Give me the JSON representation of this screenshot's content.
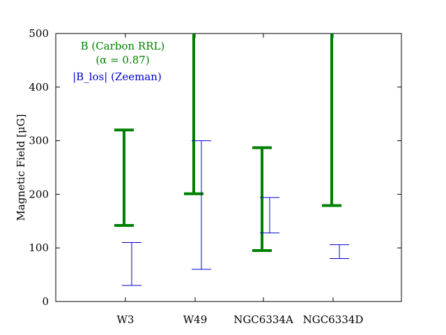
{
  "chart_data": {
    "type": "errorbar",
    "categories": [
      "W3",
      "W49",
      "NGC6334A",
      "NGC6334D"
    ],
    "ylabel": "Magnetic Field [μG]",
    "ylim": [
      0,
      500
    ],
    "yticks": [
      0,
      100,
      200,
      300,
      400,
      500
    ],
    "grid": false,
    "legend_placement": "top-left",
    "series": [
      {
        "name": "B (Carbon RRL)",
        "name_line2": "(α = 0.87)",
        "color": "#008000",
        "ranges": [
          [
            142,
            320
          ],
          [
            201,
            500
          ],
          [
            95,
            287
          ],
          [
            179,
            500
          ]
        ]
      },
      {
        "name": "|B_los| (Zeeman)",
        "color": "#0000cc",
        "ranges": [
          [
            30,
            110
          ],
          [
            60,
            300
          ],
          [
            128,
            194
          ],
          [
            80,
            106
          ]
        ]
      }
    ]
  }
}
